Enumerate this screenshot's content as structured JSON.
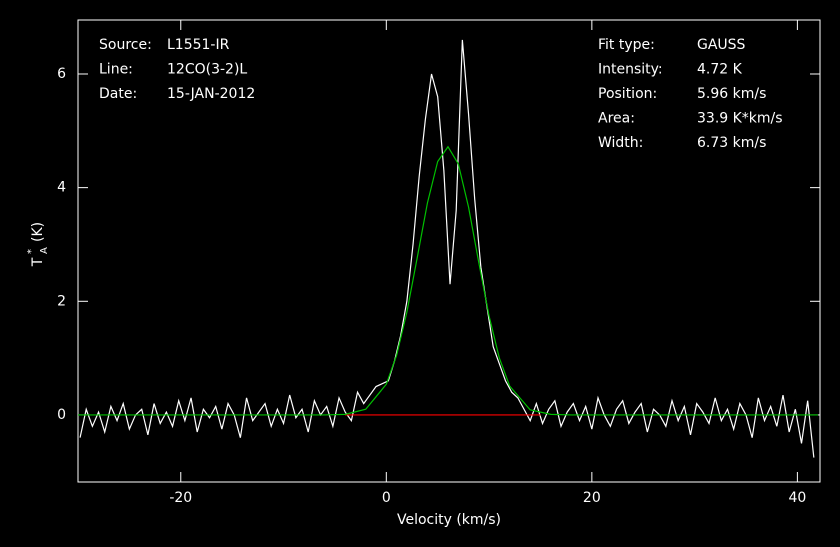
{
  "chart_data": {
    "type": "line",
    "x_label": "Velocity (km/s)",
    "y_label": {
      "symbol": "T",
      "sup": "*",
      "sub": "A",
      "unit": "(K)"
    },
    "xlim": [
      -30,
      42.2
    ],
    "ylim": [
      -1.18,
      6.95
    ],
    "xticks": [
      -20,
      0,
      20,
      40
    ],
    "yticks": [
      0,
      2,
      4,
      6
    ],
    "info_left": [
      {
        "label": "Source:",
        "value": "L1551-IR"
      },
      {
        "label": "Line:",
        "value": "12CO(3-2)L"
      },
      {
        "label": "Date:",
        "value": "15-JAN-2012"
      }
    ],
    "info_right": [
      {
        "label": "Fit type:",
        "value": "GAUSS"
      },
      {
        "label": "Intensity:",
        "value": "4.72 K"
      },
      {
        "label": "Position:",
        "value": "5.96 km/s"
      },
      {
        "label": "Area:",
        "value": "33.9 K*km/s"
      },
      {
        "label": "Width:",
        "value": "6.73 km/s"
      }
    ],
    "series": [
      {
        "color": "#ffffff",
        "x": [
          -29.8,
          -29.2,
          -28.6,
          -28.0,
          -27.4,
          -26.8,
          -26.2,
          -25.6,
          -25.0,
          -24.4,
          -23.8,
          -23.2,
          -22.6,
          -22.0,
          -21.4,
          -20.8,
          -20.2,
          -19.6,
          -19.0,
          -18.4,
          -17.8,
          -17.2,
          -16.6,
          -16.0,
          -15.4,
          -14.8,
          -14.2,
          -13.6,
          -13.0,
          -12.4,
          -11.8,
          -11.2,
          -10.6,
          -10.0,
          -9.4,
          -8.8,
          -8.2,
          -7.6,
          -7.0,
          -6.4,
          -5.8,
          -5.2,
          -4.6,
          -4.0,
          -3.4,
          -2.8,
          -2.2,
          -1.6,
          -1.0,
          -0.4,
          0.2,
          0.8,
          1.4,
          2.0,
          2.6,
          3.2,
          3.8,
          4.4,
          5.0,
          5.6,
          6.2,
          6.8,
          7.4,
          8.0,
          8.6,
          9.2,
          9.8,
          10.4,
          11.0,
          11.6,
          12.2,
          12.8,
          13.4,
          14.0,
          14.6,
          15.2,
          15.8,
          16.4,
          17.0,
          17.6,
          18.2,
          18.8,
          19.4,
          20.0,
          20.6,
          21.2,
          21.8,
          22.4,
          23.0,
          23.6,
          24.2,
          24.8,
          25.4,
          26.0,
          26.6,
          27.2,
          27.8,
          28.4,
          29.0,
          29.6,
          30.2,
          30.8,
          31.4,
          32.0,
          32.6,
          33.2,
          33.8,
          34.4,
          35.0,
          35.6,
          36.2,
          36.8,
          37.4,
          38.0,
          38.6,
          39.2,
          39.8,
          40.4,
          41.0,
          41.6
        ],
        "values": [
          -0.4,
          0.1,
          -0.2,
          0.05,
          -0.3,
          0.15,
          -0.1,
          0.2,
          -0.25,
          0.0,
          0.1,
          -0.35,
          0.2,
          -0.15,
          0.05,
          -0.2,
          0.25,
          -0.1,
          0.3,
          -0.3,
          0.1,
          -0.05,
          0.15,
          -0.25,
          0.2,
          0.0,
          -0.4,
          0.3,
          -0.1,
          0.05,
          0.2,
          -0.2,
          0.1,
          -0.15,
          0.35,
          -0.05,
          0.1,
          -0.3,
          0.25,
          0.0,
          0.15,
          -0.2,
          0.3,
          0.05,
          -0.1,
          0.4,
          0.2,
          0.35,
          0.5,
          0.55,
          0.6,
          0.95,
          1.4,
          2.0,
          3.0,
          4.2,
          5.2,
          6.0,
          5.6,
          4.3,
          2.3,
          3.6,
          6.6,
          5.3,
          3.8,
          2.6,
          1.9,
          1.2,
          0.9,
          0.6,
          0.4,
          0.3,
          0.1,
          -0.1,
          0.2,
          -0.15,
          0.1,
          0.25,
          -0.2,
          0.05,
          0.2,
          -0.1,
          0.15,
          -0.25,
          0.3,
          0.0,
          -0.2,
          0.1,
          0.25,
          -0.15,
          0.05,
          0.2,
          -0.3,
          0.1,
          0.0,
          -0.2,
          0.25,
          -0.1,
          0.15,
          -0.35,
          0.2,
          0.05,
          -0.15,
          0.3,
          -0.1,
          0.1,
          -0.25,
          0.2,
          0.0,
          -0.4,
          0.3,
          -0.1,
          0.15,
          -0.2,
          0.35,
          -0.3,
          0.1,
          -0.5,
          0.25,
          -0.75
        ]
      },
      {
        "color": "#ff0000",
        "x": [
          -4,
          15
        ],
        "values": [
          0,
          0
        ]
      },
      {
        "color": "#00c000",
        "x": [
          -30,
          -8,
          -6,
          -4,
          -2,
          0,
          1,
          2,
          3,
          4,
          5,
          6,
          7,
          8,
          9,
          10,
          11,
          12,
          14,
          16,
          18,
          20,
          42
        ],
        "values": [
          0,
          0,
          0,
          0.01,
          0.1,
          0.54,
          1.05,
          1.81,
          2.76,
          3.73,
          4.46,
          4.72,
          4.42,
          3.66,
          2.68,
          1.74,
          1.0,
          0.51,
          0.09,
          0.01,
          0,
          0,
          0
        ]
      }
    ]
  }
}
